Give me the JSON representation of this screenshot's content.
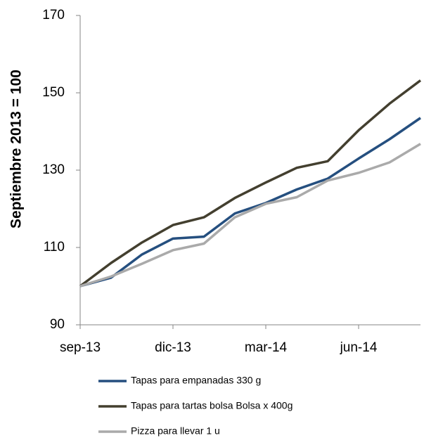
{
  "chart_data": {
    "type": "line",
    "y_label": "Septiembre  2013  = 100",
    "categories": [
      "sep-13",
      null,
      null,
      "dic-13",
      null,
      null,
      "mar-14",
      null,
      null,
      "jun-14",
      null,
      null
    ],
    "series": [
      {
        "name": "Tapas para empanadas  330 g",
        "color": "#254f7f",
        "values": [
          100,
          102.2,
          108.2,
          112.3,
          112.8,
          118.8,
          121.5,
          125,
          127.8,
          133,
          138,
          143.5
        ]
      },
      {
        "name": "Tapas para tartas bolsa  Bolsa x 400g",
        "color": "#433f2f",
        "values": [
          100,
          106,
          111.3,
          115.8,
          117.8,
          122.8,
          126.8,
          130.6,
          132.3,
          140.3,
          147.2,
          153.2
        ]
      },
      {
        "name": "Pizza para llevar 1 u",
        "color": "#aaaaaa",
        "values": [
          100,
          102.5,
          105.8,
          109.3,
          111,
          117.8,
          121.3,
          123,
          127.3,
          129.3,
          132,
          136.8
        ]
      }
    ],
    "ylim": [
      90,
      170
    ],
    "yticks": [
      90,
      110,
      130,
      150,
      170
    ],
    "grid": false
  }
}
